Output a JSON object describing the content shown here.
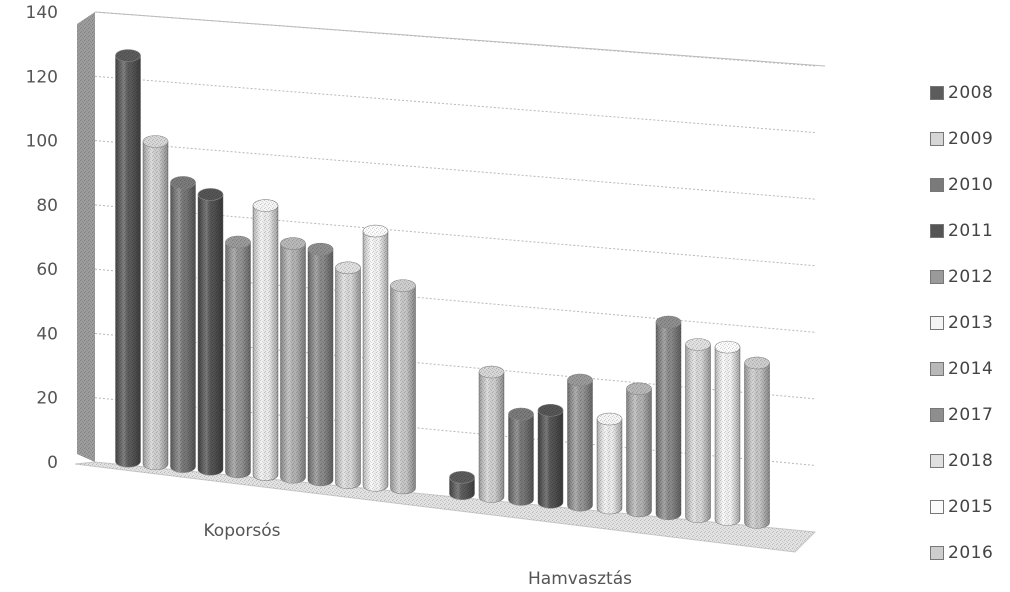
{
  "chart_data": {
    "type": "bar",
    "style": "3d-cylinder",
    "categories": [
      "Koporsós",
      "Hamvasztás"
    ],
    "ylim": [
      0,
      140
    ],
    "yticks": [
      0,
      20,
      40,
      60,
      80,
      100,
      120,
      140
    ],
    "grid": true,
    "legend_position": "right",
    "series": [
      {
        "name": "2008",
        "values": [
          126,
          5
        ],
        "color": "#5c5c5c"
      },
      {
        "name": "2009",
        "values": [
          100,
          38
        ],
        "color": "#d6d6d6"
      },
      {
        "name": "2010",
        "values": [
          88,
          26
        ],
        "color": "#7a7a7a"
      },
      {
        "name": "2011",
        "values": [
          85,
          28
        ],
        "color": "#555555"
      },
      {
        "name": "2012",
        "values": [
          71,
          38
        ],
        "color": "#9a9a9a"
      },
      {
        "name": "2013",
        "values": [
          83,
          27
        ],
        "color": "#f4f4f4"
      },
      {
        "name": "2014",
        "values": [
          72,
          37
        ],
        "color": "#b8b8b8"
      },
      {
        "name": "2017",
        "values": [
          71,
          58
        ],
        "color": "#8e8e8e"
      },
      {
        "name": "2018",
        "values": [
          66,
          52
        ],
        "color": "#e0e0e0"
      },
      {
        "name": "2015",
        "values": [
          78,
          52
        ],
        "color": "#fbfbfb"
      },
      {
        "name": "2016",
        "values": [
          62,
          48
        ],
        "color": "#cdcdcd"
      }
    ]
  }
}
